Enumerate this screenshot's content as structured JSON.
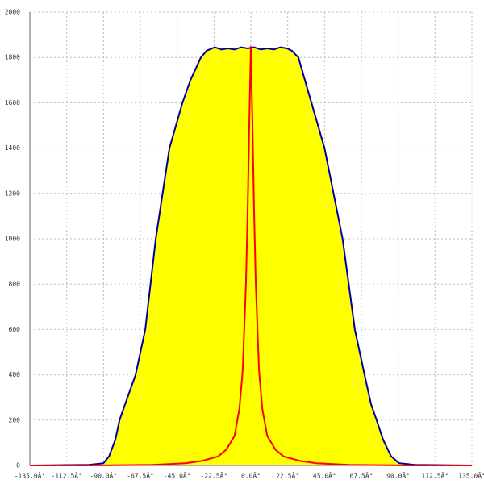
{
  "chart_data": {
    "type": "area",
    "xlim": [
      -135,
      135
    ],
    "ylim": [
      0,
      2000
    ],
    "xticks": [
      {
        "value": -135,
        "label": "-135.0Â°"
      },
      {
        "value": -112.5,
        "label": "-112.5Â°"
      },
      {
        "value": -90,
        "label": "-90.0Â°"
      },
      {
        "value": -67.5,
        "label": "-67.5Â°"
      },
      {
        "value": -45,
        "label": "-45.0Â°"
      },
      {
        "value": -22.5,
        "label": "-22.5Â°"
      },
      {
        "value": 0,
        "label": "0.0Â°"
      },
      {
        "value": 22.5,
        "label": "22.5Â°"
      },
      {
        "value": 45,
        "label": "45.0Â°"
      },
      {
        "value": 67.5,
        "label": "67.5Â°"
      },
      {
        "value": 90,
        "label": "90.0Â°"
      },
      {
        "value": 112.5,
        "label": "112.5Â°"
      },
      {
        "value": 135,
        "label": "135.0Â°"
      }
    ],
    "yticks": [
      0,
      200,
      400,
      600,
      800,
      1000,
      1200,
      1400,
      1600,
      1800,
      2000
    ],
    "grid": true,
    "series": [
      {
        "color": "#0000a0",
        "fill": "#ffff00",
        "x": [
          -135,
          -99,
          -90,
          -86.6,
          -82.7,
          -80.2,
          -76.8,
          -70.4,
          -64.5,
          -58.1,
          -49.7,
          -41.8,
          -36.9,
          -30.5,
          -27,
          -22,
          -18,
          -14,
          -10,
          -6,
          -2,
          2,
          6,
          10,
          14,
          18,
          22,
          25,
          29,
          33,
          37,
          45,
          56,
          63.5,
          69.4,
          73.4,
          76.8,
          80.7,
          85.7,
          90.6,
          100,
          135
        ],
        "values": [
          0,
          3,
          10,
          40,
          115,
          200,
          270,
          400,
          600,
          1000,
          1400,
          1600,
          1700,
          1800,
          1830,
          1845,
          1835,
          1840,
          1835,
          1845,
          1840,
          1845,
          1835,
          1840,
          1835,
          1845,
          1840,
          1830,
          1800,
          1700,
          1600,
          1400,
          1000,
          600,
          400,
          270,
          200,
          115,
          40,
          10,
          3,
          0
        ]
      },
      {
        "color": "#ff0000",
        "x": [
          -135,
          -100,
          -60,
          -40,
          -30,
          -20,
          -15,
          -10,
          -7,
          -5,
          -3,
          -2,
          -1,
          0,
          1,
          2,
          3,
          5,
          7,
          10,
          15,
          20,
          30,
          40,
          60,
          100,
          135
        ],
        "values": [
          0,
          0,
          3,
          10,
          20,
          40,
          70,
          130,
          250,
          420,
          800,
          1100,
          1500,
          1850,
          1500,
          1100,
          800,
          420,
          250,
          130,
          70,
          40,
          20,
          10,
          3,
          0,
          0
        ]
      }
    ]
  }
}
